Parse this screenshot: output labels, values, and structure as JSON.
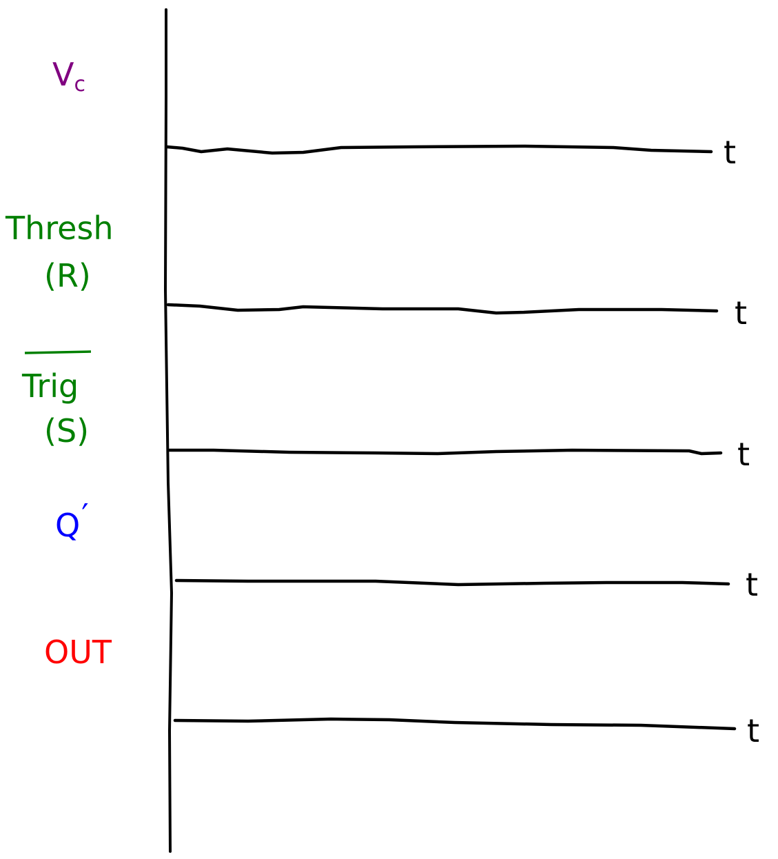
{
  "diagram": {
    "signals": [
      {
        "name": "V",
        "subscript": "c",
        "color": "#800080"
      },
      {
        "name": "Thresh",
        "secondary": "(R)",
        "color": "#008000"
      },
      {
        "name": "Trig",
        "overbar": true,
        "secondary": "(S)",
        "color": "#008000"
      },
      {
        "name": "Q",
        "prime": "′",
        "color": "#0000ff"
      },
      {
        "name": "OUT",
        "color": "#ff0000"
      }
    ],
    "time_axis_label": "t"
  }
}
